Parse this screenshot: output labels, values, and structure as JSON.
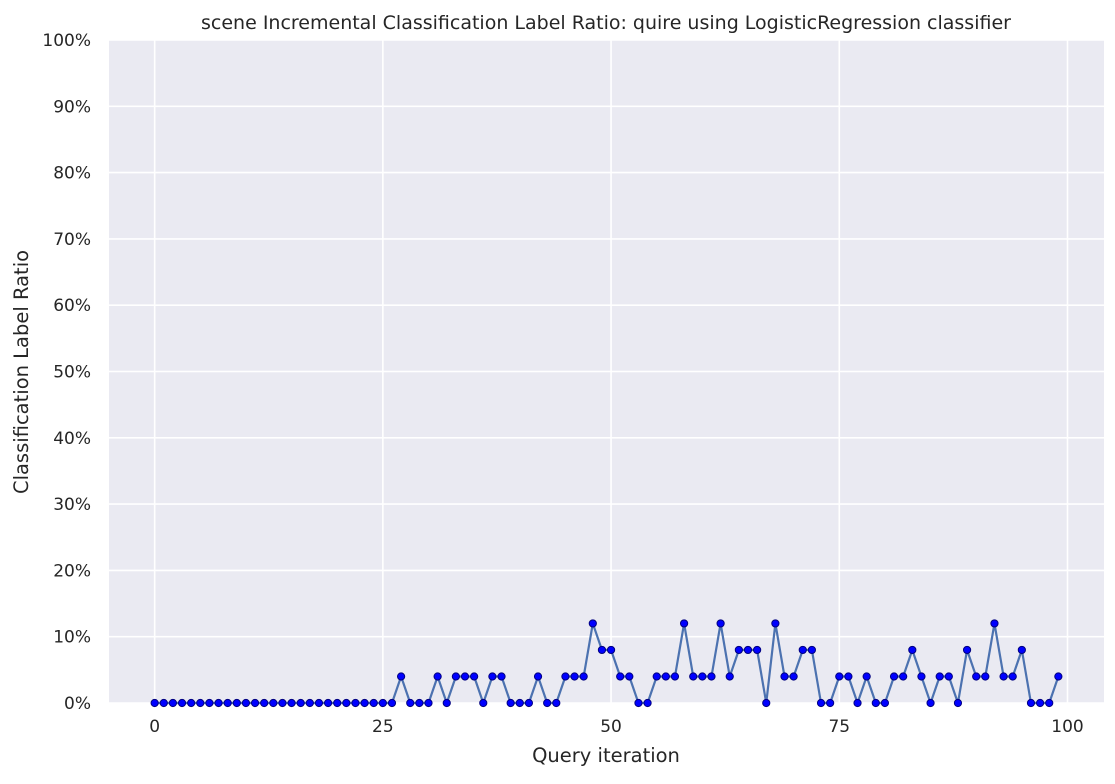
{
  "chart_data": {
    "type": "line",
    "title": "scene Incremental Classification Label Ratio: quire using LogisticRegression classifier",
    "xlabel": "Query iteration",
    "ylabel": "Classification Label Ratio",
    "xlim": [
      -5,
      104
    ],
    "ylim": [
      0,
      1
    ],
    "x_ticks": [
      0,
      25,
      50,
      75,
      100
    ],
    "x_tick_labels": [
      "0",
      "25",
      "50",
      "75",
      "100"
    ],
    "y_ticks": [
      0,
      0.1,
      0.2,
      0.3,
      0.4,
      0.5,
      0.6,
      0.7,
      0.8,
      0.9,
      1.0
    ],
    "y_tick_labels": [
      "0%",
      "10%",
      "20%",
      "30%",
      "40%",
      "50%",
      "60%",
      "70%",
      "80%",
      "90%",
      "100%"
    ],
    "grid": true,
    "colors": {
      "background": "#eaeaf2",
      "grid": "#ffffff",
      "line": "#4c72b0",
      "marker": "#0000ff",
      "marker_edge": "#000080"
    },
    "series": [
      {
        "x": [
          0,
          1,
          2,
          3,
          4,
          5,
          6,
          7,
          8,
          9,
          10,
          11,
          12,
          13,
          14,
          15,
          16,
          17,
          18,
          19,
          20,
          21,
          22,
          23,
          24,
          25,
          26,
          27,
          28,
          29,
          30,
          31,
          32,
          33,
          34,
          35,
          36,
          37,
          38,
          39,
          40,
          41,
          42,
          43,
          44,
          45,
          46,
          47,
          48,
          49,
          50,
          51,
          52,
          53,
          54,
          55,
          56,
          57,
          58,
          59,
          60,
          61,
          62,
          63,
          64,
          65,
          66,
          67,
          68,
          69,
          70,
          71,
          72,
          73,
          74,
          75,
          76,
          77,
          78,
          79,
          80,
          81,
          82,
          83,
          84,
          85,
          86,
          87,
          88,
          89,
          90,
          91,
          92,
          93,
          94,
          95,
          96,
          97,
          98,
          99
        ],
        "values": [
          0,
          0,
          0,
          0,
          0,
          0,
          0,
          0,
          0,
          0,
          0,
          0,
          0,
          0,
          0,
          0,
          0,
          0,
          0,
          0,
          0,
          0,
          0,
          0,
          0,
          0,
          0,
          0.04,
          0,
          0,
          0,
          0.04,
          0,
          0.04,
          0.04,
          0.04,
          0,
          0.04,
          0.04,
          0,
          0,
          0,
          0.04,
          0,
          0,
          0.04,
          0.04,
          0.04,
          0.12,
          0.08,
          0.08,
          0.04,
          0.04,
          0,
          0,
          0.04,
          0.04,
          0.04,
          0.12,
          0.04,
          0.04,
          0.04,
          0.12,
          0.04,
          0.08,
          0.08,
          0.08,
          0,
          0.12,
          0.04,
          0.04,
          0.08,
          0.08,
          0,
          0,
          0.04,
          0.04,
          0,
          0.04,
          0,
          0,
          0.04,
          0.04,
          0.08,
          0.04,
          0,
          0.04,
          0.04,
          0,
          0.08,
          0.04,
          0.04,
          0.12,
          0.04,
          0.04,
          0.08,
          0,
          0,
          0,
          0.04
        ]
      }
    ]
  }
}
